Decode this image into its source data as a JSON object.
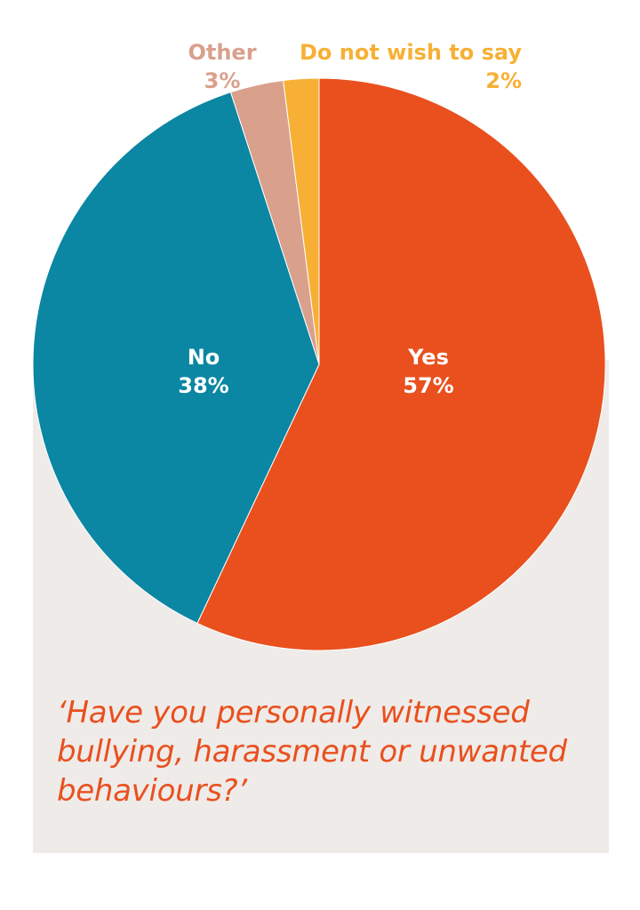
{
  "chart_data": {
    "type": "pie",
    "title": "‘Have you personally witnessed bullying, harassment or unwanted behaviours?’",
    "slices": [
      {
        "label": "Yes",
        "value": 57,
        "value_label": "57%",
        "color": "#e9501e"
      },
      {
        "label": "No",
        "value": 38,
        "value_label": "38%",
        "color": "#0b86a3"
      },
      {
        "label": "Other",
        "value": 3,
        "value_label": "3%",
        "color": "#d9a08c"
      },
      {
        "label": "Do not wish to say",
        "value": 2,
        "value_label": "2%",
        "color": "#f7b035"
      }
    ]
  },
  "colors": {
    "panel_background": "#efebe9",
    "question_text": "#e9501e",
    "inside_label": "#ffffff"
  }
}
